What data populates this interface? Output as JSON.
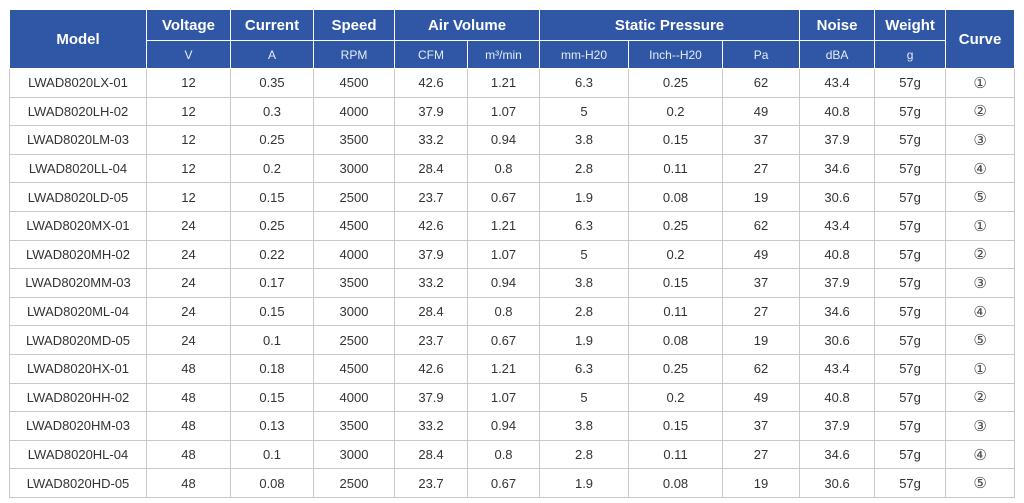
{
  "header": {
    "model": "Model",
    "voltage": "Voltage",
    "current": "Current",
    "speed": "Speed",
    "air_volume": "Air Volume",
    "static_pressure": "Static Pressure",
    "noise": "Noise",
    "weight": "Weight",
    "curve": "Curve",
    "units": {
      "voltage": "V",
      "current": "A",
      "speed": "RPM",
      "cfm": "CFM",
      "m3min": "m³/min",
      "mmh2o": "mm-H20",
      "inchh2o": "Inch--H20",
      "pa": "Pa",
      "dba": "dBA",
      "g": "g"
    }
  },
  "rows": [
    [
      "LWAD8020LX-01",
      "12",
      "0.35",
      "4500",
      "42.6",
      "1.21",
      "6.3",
      "0.25",
      "62",
      "43.4",
      "57g",
      "①"
    ],
    [
      "LWAD8020LH-02",
      "12",
      "0.3",
      "4000",
      "37.9",
      "1.07",
      "5",
      "0.2",
      "49",
      "40.8",
      "57g",
      "②"
    ],
    [
      "LWAD8020LM-03",
      "12",
      "0.25",
      "3500",
      "33.2",
      "0.94",
      "3.8",
      "0.15",
      "37",
      "37.9",
      "57g",
      "③"
    ],
    [
      "LWAD8020LL-04",
      "12",
      "0.2",
      "3000",
      "28.4",
      "0.8",
      "2.8",
      "0.11",
      "27",
      "34.6",
      "57g",
      "④"
    ],
    [
      "LWAD8020LD-05",
      "12",
      "0.15",
      "2500",
      "23.7",
      "0.67",
      "1.9",
      "0.08",
      "19",
      "30.6",
      "57g",
      "⑤"
    ],
    [
      "LWAD8020MX-01",
      "24",
      "0.25",
      "4500",
      "42.6",
      "1.21",
      "6.3",
      "0.25",
      "62",
      "43.4",
      "57g",
      "①"
    ],
    [
      "LWAD8020MH-02",
      "24",
      "0.22",
      "4000",
      "37.9",
      "1.07",
      "5",
      "0.2",
      "49",
      "40.8",
      "57g",
      "②"
    ],
    [
      "LWAD8020MM-03",
      "24",
      "0.17",
      "3500",
      "33.2",
      "0.94",
      "3.8",
      "0.15",
      "37",
      "37.9",
      "57g",
      "③"
    ],
    [
      "LWAD8020ML-04",
      "24",
      "0.15",
      "3000",
      "28.4",
      "0.8",
      "2.8",
      "0.11",
      "27",
      "34.6",
      "57g",
      "④"
    ],
    [
      "LWAD8020MD-05",
      "24",
      "0.1",
      "2500",
      "23.7",
      "0.67",
      "1.9",
      "0.08",
      "19",
      "30.6",
      "57g",
      "⑤"
    ],
    [
      "LWAD8020HX-01",
      "48",
      "0.18",
      "4500",
      "42.6",
      "1.21",
      "6.3",
      "0.25",
      "62",
      "43.4",
      "57g",
      "①"
    ],
    [
      "LWAD8020HH-02",
      "48",
      "0.15",
      "4000",
      "37.9",
      "1.07",
      "5",
      "0.2",
      "49",
      "40.8",
      "57g",
      "②"
    ],
    [
      "LWAD8020HM-03",
      "48",
      "0.13",
      "3500",
      "33.2",
      "0.94",
      "3.8",
      "0.15",
      "37",
      "37.9",
      "57g",
      "③"
    ],
    [
      "LWAD8020HL-04",
      "48",
      "0.1",
      "3000",
      "28.4",
      "0.8",
      "2.8",
      "0.11",
      "27",
      "34.6",
      "57g",
      "④"
    ],
    [
      "LWAD8020HD-05",
      "48",
      "0.08",
      "2500",
      "23.7",
      "0.67",
      "1.9",
      "0.08",
      "19",
      "30.6",
      "57g",
      "⑤"
    ]
  ],
  "colors": {
    "header_bg": "#2f57a6",
    "header_text": "#ffffff",
    "border": "#c9c9c9"
  }
}
